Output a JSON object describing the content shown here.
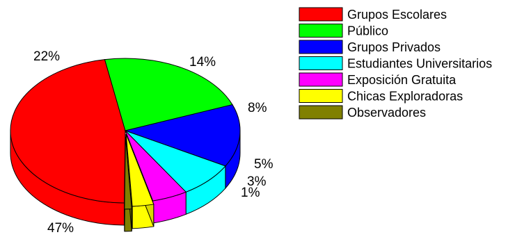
{
  "chart_data": {
    "type": "pie",
    "title": "",
    "style": "3d-exploded",
    "legend_position": "right",
    "slices": [
      {
        "name": "Grupos Escolares",
        "value": 47,
        "label": "47%",
        "color": "#ff0000"
      },
      {
        "name": "Público",
        "value": 22,
        "label": "22%",
        "color": "#00ff00"
      },
      {
        "name": "Grupos Privados",
        "value": 14,
        "label": "14%",
        "color": "#0000ff"
      },
      {
        "name": "Estudiantes Universitarios",
        "value": 8,
        "label": "8%",
        "color": "#00ffff"
      },
      {
        "name": "Exposición Gratuita",
        "value": 5,
        "label": "5%",
        "color": "#ff00ff"
      },
      {
        "name": "Chicas Exploradoras",
        "value": 3,
        "label": "3%",
        "color": "#ffff00"
      },
      {
        "name": "Observadores",
        "value": 1,
        "label": "1%",
        "color": "#808000"
      }
    ]
  }
}
